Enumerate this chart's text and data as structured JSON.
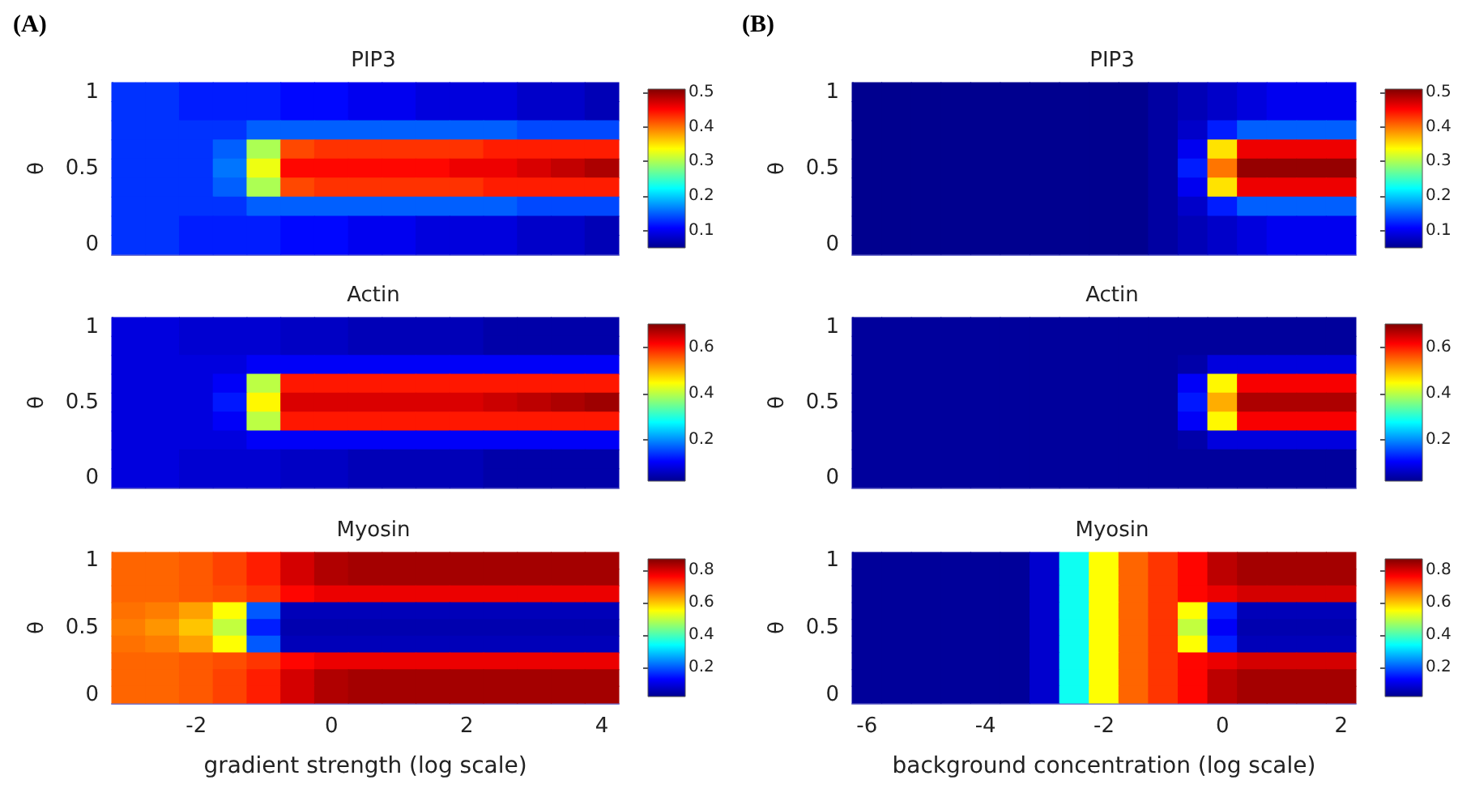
{
  "chart_data": [
    {
      "type": "heatmap",
      "title": "PIP3",
      "ylabel": "θ",
      "annotations": [
        "(A)"
      ],
      "tick_labels": "y",
      "categories": [
        null,
        null,
        null,
        null,
        null,
        null,
        null,
        null,
        null,
        null,
        null,
        null,
        null,
        null,
        null
      ],
      "y_categories": [
        "1",
        null,
        null,
        null,
        "0.5",
        null,
        null,
        null,
        "0"
      ],
      "cells": [
        [
          0.13,
          0.13,
          0.12,
          0.12,
          0.12,
          0.11,
          0.11,
          0.1,
          0.1,
          0.09,
          0.09,
          0.09,
          0.08,
          0.08,
          0.07
        ],
        [
          0.13,
          0.13,
          0.12,
          0.12,
          0.12,
          0.11,
          0.11,
          0.1,
          0.1,
          0.09,
          0.09,
          0.09,
          0.08,
          0.08,
          0.07
        ],
        [
          0.13,
          0.13,
          0.13,
          0.13,
          0.15,
          0.15,
          0.15,
          0.15,
          0.15,
          0.15,
          0.15,
          0.15,
          0.14,
          0.14,
          0.14
        ],
        [
          0.13,
          0.13,
          0.13,
          0.15,
          0.3,
          0.42,
          0.43,
          0.43,
          0.43,
          0.43,
          0.43,
          0.44,
          0.44,
          0.44,
          0.44
        ],
        [
          0.13,
          0.13,
          0.13,
          0.16,
          0.33,
          0.45,
          0.45,
          0.45,
          0.45,
          0.45,
          0.46,
          0.46,
          0.47,
          0.48,
          0.49
        ],
        [
          0.13,
          0.13,
          0.13,
          0.15,
          0.3,
          0.42,
          0.43,
          0.43,
          0.43,
          0.43,
          0.43,
          0.44,
          0.44,
          0.44,
          0.44
        ],
        [
          0.13,
          0.13,
          0.13,
          0.13,
          0.15,
          0.15,
          0.15,
          0.15,
          0.15,
          0.15,
          0.15,
          0.15,
          0.14,
          0.14,
          0.14
        ],
        [
          0.13,
          0.13,
          0.12,
          0.12,
          0.12,
          0.11,
          0.11,
          0.1,
          0.1,
          0.09,
          0.09,
          0.09,
          0.08,
          0.08,
          0.07
        ],
        [
          0.13,
          0.13,
          0.12,
          0.12,
          0.12,
          0.11,
          0.11,
          0.1,
          0.1,
          0.09,
          0.09,
          0.09,
          0.08,
          0.08,
          0.07
        ]
      ],
      "clim": [
        0.05,
        0.51
      ],
      "cticks": [
        0.1,
        0.2,
        0.3,
        0.4,
        0.5
      ]
    },
    {
      "type": "heatmap",
      "title": "PIP3",
      "ylabel": "θ",
      "annotations": [
        "(B)"
      ],
      "tick_labels": "y",
      "categories": [
        null,
        null,
        null,
        null,
        null,
        null,
        null,
        null,
        null,
        null,
        null,
        null,
        null,
        null,
        null,
        null,
        null
      ],
      "y_categories": [
        "1",
        null,
        null,
        null,
        "0.5",
        null,
        null,
        null,
        "0"
      ],
      "cells": [
        [
          0.05,
          0.05,
          0.05,
          0.05,
          0.05,
          0.05,
          0.05,
          0.05,
          0.05,
          0.05,
          0.06,
          0.07,
          0.08,
          0.09,
          0.1,
          0.1,
          0.1
        ],
        [
          0.05,
          0.05,
          0.05,
          0.05,
          0.05,
          0.05,
          0.05,
          0.05,
          0.05,
          0.05,
          0.06,
          0.07,
          0.08,
          0.09,
          0.1,
          0.1,
          0.1
        ],
        [
          0.05,
          0.05,
          0.05,
          0.05,
          0.05,
          0.05,
          0.05,
          0.05,
          0.05,
          0.05,
          0.06,
          0.08,
          0.12,
          0.15,
          0.15,
          0.15,
          0.15
        ],
        [
          0.05,
          0.05,
          0.05,
          0.05,
          0.05,
          0.05,
          0.05,
          0.05,
          0.05,
          0.05,
          0.06,
          0.1,
          0.35,
          0.46,
          0.46,
          0.46,
          0.46
        ],
        [
          0.05,
          0.05,
          0.05,
          0.05,
          0.05,
          0.05,
          0.05,
          0.05,
          0.05,
          0.05,
          0.06,
          0.12,
          0.4,
          0.5,
          0.5,
          0.5,
          0.5
        ],
        [
          0.05,
          0.05,
          0.05,
          0.05,
          0.05,
          0.05,
          0.05,
          0.05,
          0.05,
          0.05,
          0.06,
          0.1,
          0.35,
          0.46,
          0.46,
          0.46,
          0.46
        ],
        [
          0.05,
          0.05,
          0.05,
          0.05,
          0.05,
          0.05,
          0.05,
          0.05,
          0.05,
          0.05,
          0.06,
          0.08,
          0.12,
          0.15,
          0.15,
          0.15,
          0.15
        ],
        [
          0.05,
          0.05,
          0.05,
          0.05,
          0.05,
          0.05,
          0.05,
          0.05,
          0.05,
          0.05,
          0.06,
          0.07,
          0.08,
          0.09,
          0.1,
          0.1,
          0.1
        ],
        [
          0.05,
          0.05,
          0.05,
          0.05,
          0.05,
          0.05,
          0.05,
          0.05,
          0.05,
          0.05,
          0.06,
          0.07,
          0.08,
          0.09,
          0.1,
          0.1,
          0.1
        ]
      ],
      "clim": [
        0.05,
        0.51
      ],
      "cticks": [
        0.1,
        0.2,
        0.3,
        0.4,
        0.5
      ]
    },
    {
      "type": "heatmap",
      "title": "Actin",
      "ylabel": "θ",
      "tick_labels": "y",
      "categories": [
        null,
        null,
        null,
        null,
        null,
        null,
        null,
        null,
        null,
        null,
        null,
        null,
        null,
        null,
        null
      ],
      "y_categories": [
        "1",
        null,
        null,
        null,
        "0.5",
        null,
        null,
        null,
        "0"
      ],
      "cells": [
        [
          0.08,
          0.08,
          0.07,
          0.07,
          0.07,
          0.06,
          0.06,
          0.05,
          0.05,
          0.05,
          0.05,
          0.04,
          0.04,
          0.04,
          0.04
        ],
        [
          0.08,
          0.08,
          0.07,
          0.07,
          0.07,
          0.06,
          0.06,
          0.05,
          0.05,
          0.05,
          0.05,
          0.04,
          0.04,
          0.04,
          0.04
        ],
        [
          0.08,
          0.08,
          0.08,
          0.08,
          0.1,
          0.1,
          0.1,
          0.1,
          0.1,
          0.1,
          0.1,
          0.1,
          0.1,
          0.1,
          0.1
        ],
        [
          0.08,
          0.08,
          0.08,
          0.1,
          0.4,
          0.6,
          0.6,
          0.6,
          0.6,
          0.6,
          0.6,
          0.6,
          0.6,
          0.6,
          0.6
        ],
        [
          0.08,
          0.08,
          0.08,
          0.12,
          0.45,
          0.64,
          0.64,
          0.64,
          0.64,
          0.64,
          0.64,
          0.65,
          0.66,
          0.67,
          0.68
        ],
        [
          0.08,
          0.08,
          0.08,
          0.1,
          0.4,
          0.6,
          0.6,
          0.6,
          0.6,
          0.6,
          0.6,
          0.6,
          0.6,
          0.6,
          0.6
        ],
        [
          0.08,
          0.08,
          0.08,
          0.08,
          0.1,
          0.1,
          0.1,
          0.1,
          0.1,
          0.1,
          0.1,
          0.1,
          0.1,
          0.1,
          0.1
        ],
        [
          0.08,
          0.08,
          0.07,
          0.07,
          0.07,
          0.06,
          0.06,
          0.05,
          0.05,
          0.05,
          0.05,
          0.04,
          0.04,
          0.04,
          0.04
        ],
        [
          0.08,
          0.08,
          0.07,
          0.07,
          0.07,
          0.06,
          0.06,
          0.05,
          0.05,
          0.05,
          0.05,
          0.04,
          0.04,
          0.04,
          0.04
        ]
      ],
      "clim": [
        0.02,
        0.7
      ],
      "cticks": [
        0.2,
        0.4,
        0.6
      ]
    },
    {
      "type": "heatmap",
      "title": "Actin",
      "ylabel": "θ",
      "tick_labels": "y",
      "categories": [
        null,
        null,
        null,
        null,
        null,
        null,
        null,
        null,
        null,
        null,
        null,
        null,
        null,
        null,
        null,
        null,
        null
      ],
      "y_categories": [
        "1",
        null,
        null,
        null,
        "0.5",
        null,
        null,
        null,
        "0"
      ],
      "cells": [
        [
          0.03,
          0.03,
          0.03,
          0.03,
          0.03,
          0.03,
          0.03,
          0.03,
          0.03,
          0.03,
          0.03,
          0.03,
          0.03,
          0.03,
          0.03,
          0.03,
          0.03
        ],
        [
          0.03,
          0.03,
          0.03,
          0.03,
          0.03,
          0.03,
          0.03,
          0.03,
          0.03,
          0.03,
          0.03,
          0.03,
          0.03,
          0.03,
          0.03,
          0.03,
          0.03
        ],
        [
          0.03,
          0.03,
          0.03,
          0.03,
          0.03,
          0.03,
          0.03,
          0.03,
          0.03,
          0.03,
          0.03,
          0.04,
          0.08,
          0.08,
          0.08,
          0.08,
          0.08
        ],
        [
          0.03,
          0.03,
          0.03,
          0.03,
          0.03,
          0.03,
          0.03,
          0.03,
          0.03,
          0.03,
          0.03,
          0.1,
          0.45,
          0.62,
          0.62,
          0.62,
          0.62
        ],
        [
          0.03,
          0.03,
          0.03,
          0.03,
          0.03,
          0.03,
          0.03,
          0.03,
          0.03,
          0.03,
          0.03,
          0.12,
          0.5,
          0.67,
          0.67,
          0.67,
          0.67
        ],
        [
          0.03,
          0.03,
          0.03,
          0.03,
          0.03,
          0.03,
          0.03,
          0.03,
          0.03,
          0.03,
          0.03,
          0.1,
          0.45,
          0.62,
          0.62,
          0.62,
          0.62
        ],
        [
          0.03,
          0.03,
          0.03,
          0.03,
          0.03,
          0.03,
          0.03,
          0.03,
          0.03,
          0.03,
          0.03,
          0.04,
          0.08,
          0.08,
          0.08,
          0.08,
          0.08
        ],
        [
          0.03,
          0.03,
          0.03,
          0.03,
          0.03,
          0.03,
          0.03,
          0.03,
          0.03,
          0.03,
          0.03,
          0.03,
          0.03,
          0.03,
          0.03,
          0.03,
          0.03
        ],
        [
          0.03,
          0.03,
          0.03,
          0.03,
          0.03,
          0.03,
          0.03,
          0.03,
          0.03,
          0.03,
          0.03,
          0.03,
          0.03,
          0.03,
          0.03,
          0.03,
          0.03
        ]
      ],
      "clim": [
        0.02,
        0.7
      ],
      "cticks": [
        0.2,
        0.4,
        0.6
      ]
    },
    {
      "type": "heatmap",
      "title": "Myosin",
      "xlabel": "gradient strength (log scale)",
      "ylabel": "θ",
      "categories": [
        null,
        null,
        "-2",
        null,
        null,
        null,
        "0",
        null,
        null,
        null,
        "2",
        null,
        null,
        null,
        "4"
      ],
      "y_categories": [
        "1",
        null,
        null,
        null,
        "0.5",
        null,
        null,
        null,
        "0"
      ],
      "cells": [
        [
          0.68,
          0.68,
          0.69,
          0.71,
          0.74,
          0.8,
          0.83,
          0.84,
          0.84,
          0.84,
          0.84,
          0.84,
          0.84,
          0.84,
          0.84
        ],
        [
          0.68,
          0.68,
          0.69,
          0.71,
          0.74,
          0.8,
          0.83,
          0.84,
          0.84,
          0.84,
          0.84,
          0.84,
          0.84,
          0.84,
          0.84
        ],
        [
          0.68,
          0.68,
          0.69,
          0.7,
          0.72,
          0.76,
          0.78,
          0.78,
          0.78,
          0.78,
          0.78,
          0.78,
          0.78,
          0.78,
          0.78
        ],
        [
          0.67,
          0.66,
          0.63,
          0.55,
          0.2,
          0.06,
          0.06,
          0.06,
          0.06,
          0.06,
          0.06,
          0.06,
          0.06,
          0.06,
          0.06
        ],
        [
          0.66,
          0.64,
          0.6,
          0.5,
          0.15,
          0.05,
          0.05,
          0.05,
          0.05,
          0.05,
          0.05,
          0.05,
          0.05,
          0.05,
          0.05
        ],
        [
          0.67,
          0.66,
          0.63,
          0.55,
          0.2,
          0.06,
          0.06,
          0.06,
          0.06,
          0.06,
          0.06,
          0.06,
          0.06,
          0.06,
          0.06
        ],
        [
          0.68,
          0.68,
          0.69,
          0.7,
          0.72,
          0.76,
          0.78,
          0.78,
          0.78,
          0.78,
          0.78,
          0.78,
          0.78,
          0.78,
          0.78
        ],
        [
          0.68,
          0.68,
          0.69,
          0.71,
          0.74,
          0.8,
          0.83,
          0.84,
          0.84,
          0.84,
          0.84,
          0.84,
          0.84,
          0.84,
          0.84
        ],
        [
          0.68,
          0.68,
          0.69,
          0.71,
          0.74,
          0.8,
          0.83,
          0.84,
          0.84,
          0.84,
          0.84,
          0.84,
          0.84,
          0.84,
          0.84
        ]
      ],
      "clim": [
        0.02,
        0.87
      ],
      "cticks": [
        0.2,
        0.4,
        0.6,
        0.8
      ]
    },
    {
      "type": "heatmap",
      "title": "Myosin",
      "xlabel": "background concentration (log scale)",
      "ylabel": "θ",
      "categories": [
        "-6",
        null,
        null,
        null,
        "-4",
        null,
        null,
        null,
        "-2",
        null,
        null,
        null,
        "0",
        null,
        null,
        null,
        "2"
      ],
      "y_categories": [
        "1",
        null,
        null,
        null,
        "0.5",
        null,
        null,
        null,
        "0"
      ],
      "cells": [
        [
          0.03,
          0.03,
          0.03,
          0.03,
          0.03,
          0.03,
          0.08,
          0.35,
          0.55,
          0.68,
          0.72,
          0.76,
          0.82,
          0.84,
          0.84,
          0.84,
          0.84
        ],
        [
          0.03,
          0.03,
          0.03,
          0.03,
          0.03,
          0.03,
          0.08,
          0.35,
          0.55,
          0.68,
          0.72,
          0.76,
          0.82,
          0.84,
          0.84,
          0.84,
          0.84
        ],
        [
          0.03,
          0.03,
          0.03,
          0.03,
          0.03,
          0.03,
          0.08,
          0.35,
          0.55,
          0.68,
          0.72,
          0.76,
          0.78,
          0.8,
          0.8,
          0.8,
          0.8
        ],
        [
          0.03,
          0.03,
          0.03,
          0.03,
          0.03,
          0.03,
          0.08,
          0.35,
          0.55,
          0.68,
          0.72,
          0.55,
          0.15,
          0.06,
          0.06,
          0.06,
          0.06
        ],
        [
          0.03,
          0.03,
          0.03,
          0.03,
          0.03,
          0.03,
          0.08,
          0.35,
          0.55,
          0.68,
          0.72,
          0.5,
          0.12,
          0.05,
          0.05,
          0.05,
          0.05
        ],
        [
          0.03,
          0.03,
          0.03,
          0.03,
          0.03,
          0.03,
          0.08,
          0.35,
          0.55,
          0.68,
          0.72,
          0.55,
          0.15,
          0.06,
          0.06,
          0.06,
          0.06
        ],
        [
          0.03,
          0.03,
          0.03,
          0.03,
          0.03,
          0.03,
          0.08,
          0.35,
          0.55,
          0.68,
          0.72,
          0.76,
          0.78,
          0.8,
          0.8,
          0.8,
          0.8
        ],
        [
          0.03,
          0.03,
          0.03,
          0.03,
          0.03,
          0.03,
          0.08,
          0.35,
          0.55,
          0.68,
          0.72,
          0.76,
          0.82,
          0.84,
          0.84,
          0.84,
          0.84
        ],
        [
          0.03,
          0.03,
          0.03,
          0.03,
          0.03,
          0.03,
          0.08,
          0.35,
          0.55,
          0.68,
          0.72,
          0.76,
          0.82,
          0.84,
          0.84,
          0.84,
          0.84
        ]
      ],
      "clim": [
        0.02,
        0.87
      ],
      "cticks": [
        0.2,
        0.4,
        0.6,
        0.8
      ]
    }
  ]
}
